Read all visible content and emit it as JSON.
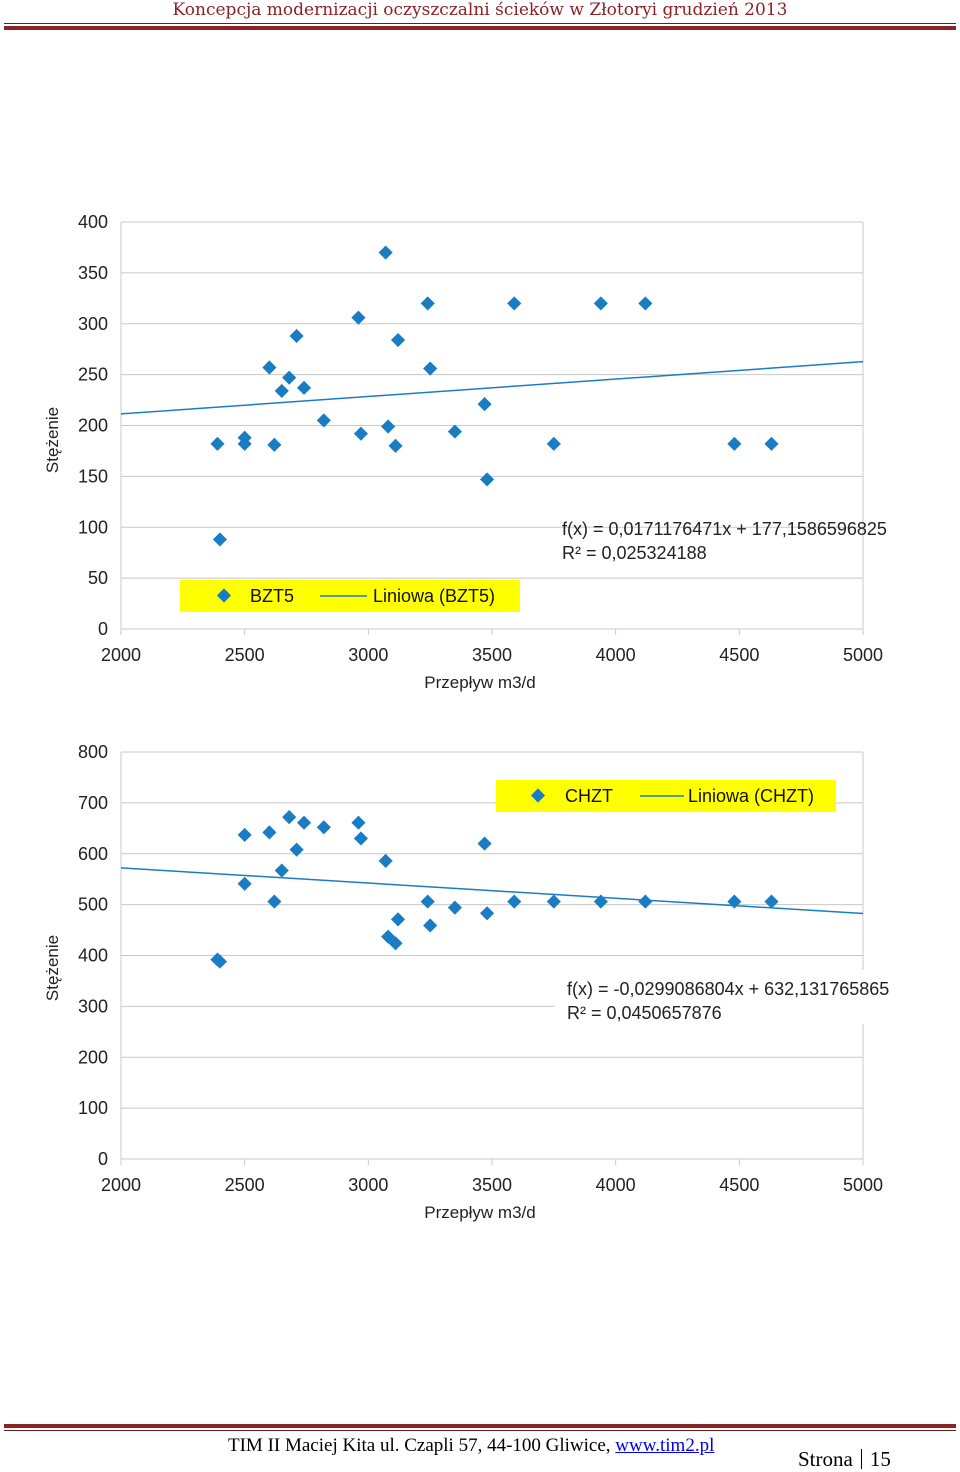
{
  "header": {
    "title": "Koncepcja modernizacji oczyszczalni ścieków w Złotoryi grudzień 2013"
  },
  "footer": {
    "address": "TIM II Maciej Kita ul. Czapli 57, 44-100 Gliwice, ",
    "link": "www.tim2.pl",
    "page_label": "Strona",
    "page_number": "15"
  },
  "colors": {
    "accent": "#8a2226",
    "marker": "#1a7dc4",
    "trendline": "#1a7dc4",
    "legend_bg": "#ffff00",
    "grid": "#c8c8c8"
  },
  "chart_data": [
    {
      "type": "scatter",
      "xlabel": "Przepływ m3/d",
      "ylabel": "Stężenie",
      "xlim": [
        2000,
        5000
      ],
      "ylim": [
        0,
        400
      ],
      "x_ticks": [
        2000,
        2500,
        3000,
        3500,
        4000,
        4500,
        5000
      ],
      "y_ticks": [
        0,
        50,
        100,
        150,
        200,
        250,
        300,
        350,
        400
      ],
      "grid": "horizontal",
      "legend": {
        "series": "BZT5",
        "trend": "Liniowa (BZT5)",
        "placement": "bottom-left"
      },
      "trendline": {
        "slope": 0.0171176471,
        "intercept": 177.1586596825
      },
      "equation": "f(x) = 0,0171176471x + 177,1586596825",
      "r2": "R² = 0,025324188",
      "points": [
        [
          2390,
          182
        ],
        [
          2400,
          88
        ],
        [
          2500,
          188
        ],
        [
          2500,
          182
        ],
        [
          2600,
          257
        ],
        [
          2620,
          181
        ],
        [
          2650,
          234
        ],
        [
          2680,
          247
        ],
        [
          2710,
          288
        ],
        [
          2740,
          237
        ],
        [
          2820,
          205
        ],
        [
          2960,
          306
        ],
        [
          2970,
          192
        ],
        [
          3070,
          370
        ],
        [
          3080,
          199
        ],
        [
          3110,
          180
        ],
        [
          3120,
          284
        ],
        [
          3240,
          320
        ],
        [
          3250,
          256
        ],
        [
          3350,
          194
        ],
        [
          3470,
          221
        ],
        [
          3480,
          147
        ],
        [
          3590,
          320
        ],
        [
          3750,
          182
        ],
        [
          3940,
          320
        ],
        [
          4120,
          320
        ],
        [
          4480,
          182
        ],
        [
          4630,
          182
        ]
      ]
    },
    {
      "type": "scatter",
      "xlabel": "Przepływ m3/d",
      "ylabel": "Stężenie",
      "xlim": [
        2000,
        5000
      ],
      "ylim": [
        0,
        800
      ],
      "x_ticks": [
        2000,
        2500,
        3000,
        3500,
        4000,
        4500,
        5000
      ],
      "y_ticks": [
        0,
        100,
        200,
        300,
        400,
        500,
        600,
        700,
        800
      ],
      "grid": "horizontal",
      "legend": {
        "series": "CHZT",
        "trend": "Liniowa (CHZT)",
        "placement": "top-right"
      },
      "trendline": {
        "slope": -0.0299086804,
        "intercept": 632.131765865
      },
      "equation": "f(x) = -0,0299086804x + 632,131765865",
      "r2": "R² = 0,0450657876",
      "points": [
        [
          2390,
          392
        ],
        [
          2400,
          388
        ],
        [
          2500,
          637
        ],
        [
          2500,
          541
        ],
        [
          2600,
          642
        ],
        [
          2620,
          506
        ],
        [
          2650,
          567
        ],
        [
          2680,
          672
        ],
        [
          2710,
          608
        ],
        [
          2740,
          661
        ],
        [
          2820,
          652
        ],
        [
          2960,
          661
        ],
        [
          2970,
          630
        ],
        [
          3070,
          586
        ],
        [
          3080,
          437
        ],
        [
          3110,
          424
        ],
        [
          3120,
          471
        ],
        [
          3240,
          506
        ],
        [
          3250,
          459
        ],
        [
          3350,
          494
        ],
        [
          3470,
          620
        ],
        [
          3480,
          483
        ],
        [
          3590,
          506
        ],
        [
          3750,
          506
        ],
        [
          3940,
          506
        ],
        [
          4120,
          506
        ],
        [
          4480,
          506
        ],
        [
          4630,
          506
        ]
      ]
    }
  ]
}
